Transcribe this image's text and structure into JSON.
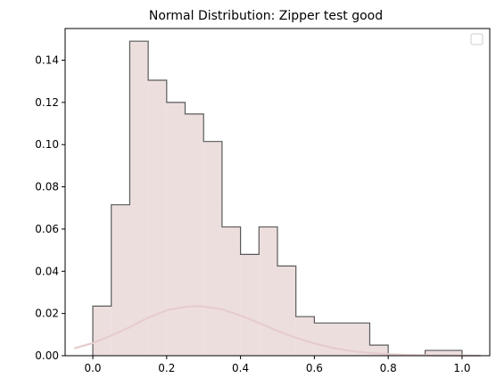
{
  "chart_data": {
    "type": "bar",
    "title": "Normal Distribution: Zipper test good",
    "xlabel": "",
    "ylabel": "",
    "xlim": [
      -0.075,
      1.075
    ],
    "ylim": [
      0,
      0.155
    ],
    "xticks": [
      "0.0",
      "0.2",
      "0.4",
      "0.6",
      "0.8",
      "1.0"
    ],
    "xtick_values": [
      0.0,
      0.2,
      0.4,
      0.6,
      0.8,
      1.0
    ],
    "yticks": [
      "0.00",
      "0.02",
      "0.04",
      "0.06",
      "0.08",
      "0.10",
      "0.12",
      "0.14"
    ],
    "ytick_values": [
      0.0,
      0.02,
      0.04,
      0.06,
      0.08,
      0.1,
      0.12,
      0.14
    ],
    "grid": false,
    "legend": {
      "placement": "top-right",
      "entries": []
    },
    "histogram": {
      "style": "step-filled",
      "fill_color": "#eddede",
      "edge_color": "#5a5a5a",
      "bins": [
        {
          "x0": 0.0,
          "x1": 0.05,
          "y": 0.0235
        },
        {
          "x0": 0.05,
          "x1": 0.1,
          "y": 0.0715
        },
        {
          "x0": 0.1,
          "x1": 0.15,
          "y": 0.149
        },
        {
          "x0": 0.15,
          "x1": 0.2,
          "y": 0.1305
        },
        {
          "x0": 0.2,
          "x1": 0.25,
          "y": 0.12
        },
        {
          "x0": 0.25,
          "x1": 0.3,
          "y": 0.1145
        },
        {
          "x0": 0.3,
          "x1": 0.35,
          "y": 0.1015
        },
        {
          "x0": 0.35,
          "x1": 0.4,
          "y": 0.061
        },
        {
          "x0": 0.4,
          "x1": 0.45,
          "y": 0.048
        },
        {
          "x0": 0.45,
          "x1": 0.5,
          "y": 0.061
        },
        {
          "x0": 0.5,
          "x1": 0.55,
          "y": 0.0425
        },
        {
          "x0": 0.55,
          "x1": 0.6,
          "y": 0.0185
        },
        {
          "x0": 0.6,
          "x1": 0.75,
          "y": 0.0155
        },
        {
          "x0": 0.75,
          "x1": 0.8,
          "y": 0.005
        },
        {
          "x0": 0.9,
          "x1": 1.0,
          "y": 0.0025
        }
      ]
    },
    "curve": {
      "type": "line",
      "color": "#e6cccc",
      "x": [
        -0.05,
        0.0,
        0.05,
        0.1,
        0.15,
        0.2,
        0.25,
        0.28,
        0.3,
        0.35,
        0.4,
        0.45,
        0.5,
        0.55,
        0.6,
        0.65,
        0.7,
        0.75,
        0.8,
        0.85,
        0.9,
        0.95,
        1.0,
        1.05
      ],
      "y": [
        0.0035,
        0.006,
        0.0095,
        0.0135,
        0.018,
        0.0215,
        0.0232,
        0.0235,
        0.0233,
        0.022,
        0.019,
        0.0155,
        0.0118,
        0.0085,
        0.0058,
        0.0037,
        0.0022,
        0.0013,
        0.0007,
        0.0004,
        0.0002,
        0.0001,
        5e-05,
        2e-05
      ]
    }
  }
}
